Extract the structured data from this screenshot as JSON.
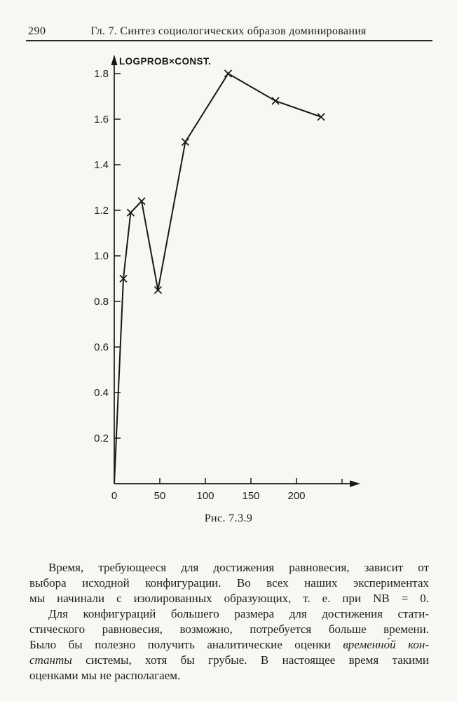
{
  "page": {
    "number": "290",
    "header_title": "Гл. 7. Синтез социологических образов доминирования"
  },
  "figure": {
    "caption": "Рис. 7.3.9"
  },
  "chart_data": {
    "type": "line",
    "title": "Рис. 7.3.9",
    "xlabel": "",
    "ylabel": "LOGPROB×CONST.",
    "marker": "x",
    "first_point_unmarked": true,
    "grid": false,
    "legend": false,
    "xlim": [
      0,
      265
    ],
    "ylim": [
      0,
      1.87
    ],
    "x_ticks": [
      0,
      50,
      100,
      150,
      200
    ],
    "x_minor_ticks": [
      250
    ],
    "y_ticks": [
      0.2,
      0.4,
      0.6,
      0.8,
      1.0,
      1.2,
      1.4,
      1.6,
      1.8
    ],
    "series": [
      {
        "name": "logprob-curve",
        "points": [
          [
            0,
            0
          ],
          [
            10,
            0.9
          ],
          [
            18,
            1.19
          ],
          [
            30,
            1.24
          ],
          [
            48,
            0.85
          ],
          [
            78,
            1.5
          ],
          [
            125,
            1.8
          ],
          [
            177,
            1.68
          ],
          [
            227,
            1.61
          ]
        ]
      }
    ]
  },
  "paragraphs": [
    {
      "lines": [
        {
          "indent": true,
          "segs": [
            {
              "t": "Время, требующееся для достижения равновесия, зависит от"
            }
          ]
        },
        {
          "segs": [
            {
              "t": "выбора исходной конфигурации. Во всех наших экспериментах"
            }
          ]
        },
        {
          "segs": [
            {
              "t": "мы начинали с изолированных образующих, т. е. при NB = 0."
            }
          ]
        }
      ]
    },
    {
      "lines": [
        {
          "indent": true,
          "segs": [
            {
              "t": "Для конфигураций большего размера для достижения стати-"
            }
          ]
        },
        {
          "segs": [
            {
              "t": "стического равновесия, возможно, потребуется больше времени."
            }
          ]
        },
        {
          "segs": [
            {
              "t": "Было бы полезно получить аналитические оценки "
            },
            {
              "t": "временно́й кон-",
              "i": true
            }
          ]
        },
        {
          "segs": [
            {
              "t": "станты",
              "i": true
            },
            {
              "t": " системы, хотя бы грубые. В настоящее время такими"
            }
          ]
        },
        {
          "last": true,
          "segs": [
            {
              "t": "оценками мы не располагаем."
            }
          ]
        }
      ]
    }
  ]
}
